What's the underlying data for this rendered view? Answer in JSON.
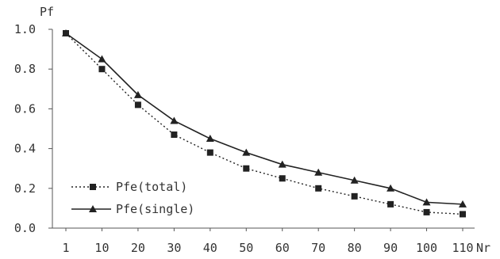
{
  "chart_data": {
    "type": "line",
    "ylabel": "Pf",
    "xlabel": "Nr",
    "categories": [
      "1",
      "10",
      "20",
      "30",
      "40",
      "50",
      "60",
      "70",
      "80",
      "90",
      "100",
      "110"
    ],
    "ylim": [
      0,
      1.0
    ],
    "yticks": [
      "0.0",
      "0.2",
      "0.4",
      "0.6",
      "0.8",
      "1.0"
    ],
    "grid": false,
    "legend_position": "bottom-left",
    "series": [
      {
        "name": "Pfe(total)",
        "line_style": "dotted",
        "marker": "square",
        "color": "#222222",
        "values": [
          0.98,
          0.8,
          0.62,
          0.47,
          0.38,
          0.3,
          0.25,
          0.2,
          0.16,
          0.12,
          0.08,
          0.07
        ]
      },
      {
        "name": "Pfe(single)",
        "line_style": "solid",
        "marker": "triangle",
        "color": "#222222",
        "values": [
          0.98,
          0.85,
          0.67,
          0.54,
          0.45,
          0.38,
          0.32,
          0.28,
          0.24,
          0.2,
          0.13,
          0.12
        ]
      }
    ]
  }
}
